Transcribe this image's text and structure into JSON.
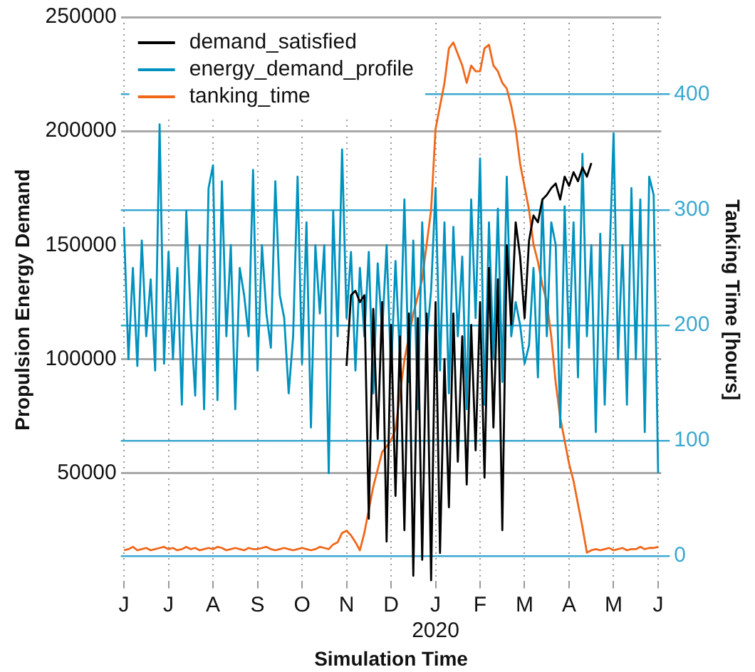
{
  "chart_data": {
    "type": "line",
    "xlabel": "Simulation Time",
    "ylabel": "Propulsion Energy Demand",
    "y2label": "Tanking Time [hours]",
    "categories": [
      "J",
      null,
      null,
      null,
      null,
      null,
      null,
      null,
      null,
      null,
      "J",
      null,
      null,
      null,
      null,
      null,
      null,
      null,
      null,
      null,
      "A",
      null,
      null,
      null,
      null,
      null,
      null,
      null,
      null,
      null,
      "S",
      null,
      null,
      null,
      null,
      null,
      null,
      null,
      null,
      null,
      "O",
      null,
      null,
      null,
      null,
      null,
      null,
      null,
      null,
      null,
      "N",
      null,
      null,
      null,
      null,
      null,
      null,
      null,
      null,
      null,
      "D",
      null,
      null,
      null,
      null,
      null,
      null,
      null,
      null,
      null,
      "J\n2020",
      null,
      null,
      null,
      null,
      null,
      null,
      null,
      null,
      null,
      "F",
      null,
      null,
      null,
      null,
      null,
      null,
      null,
      null,
      null,
      "M",
      null,
      null,
      null,
      null,
      null,
      null,
      null,
      null,
      null,
      "A",
      null,
      null,
      null,
      null,
      null,
      null,
      null,
      null,
      null,
      "M",
      null,
      null,
      null,
      null,
      null,
      null,
      null,
      null,
      null,
      "J"
    ],
    "ylim": [
      2000,
      250000
    ],
    "yticks": [
      50000,
      100000,
      150000,
      200000,
      250000
    ],
    "y2lim": [
      -23,
      467
    ],
    "y2ticks": [
      0,
      100,
      200,
      300,
      400
    ],
    "grid": true,
    "legend": "top left",
    "series": [
      {
        "name": "demand_satisfied",
        "color": "#000000",
        "values": [
          null,
          null,
          null,
          null,
          null,
          null,
          null,
          null,
          null,
          null,
          null,
          null,
          null,
          null,
          null,
          null,
          null,
          null,
          null,
          null,
          null,
          null,
          null,
          null,
          null,
          null,
          null,
          null,
          null,
          null,
          null,
          null,
          null,
          null,
          null,
          null,
          null,
          null,
          null,
          null,
          null,
          null,
          null,
          null,
          null,
          null,
          null,
          null,
          null,
          null,
          97000,
          128000,
          130000,
          125000,
          128000,
          30000,
          122000,
          65000,
          125000,
          20000,
          115000,
          40000,
          110000,
          25000,
          120000,
          5000,
          118000,
          12000,
          120000,
          3000,
          125000,
          15000,
          100000,
          35000,
          120000,
          55000,
          110000,
          45000,
          115000,
          60000,
          125000,
          48000,
          140000,
          70000,
          135000,
          25000,
          150000,
          115000,
          160000,
          145000,
          118000,
          152000,
          163000,
          160000,
          170000,
          172000,
          175000,
          177000,
          170000,
          180000,
          176000,
          182000,
          178000,
          184000,
          180000,
          186000,
          null,
          null,
          null,
          null,
          null,
          null,
          null,
          null,
          null,
          null,
          null,
          null,
          null,
          null,
          null
        ]
      },
      {
        "name": "energy_demand_profile",
        "color": "#0092bf",
        "values": [
          158000,
          100000,
          140000,
          97000,
          152000,
          110000,
          135000,
          95000,
          203000,
          98000,
          147000,
          100000,
          140000,
          80000,
          165000,
          118000,
          84000,
          150000,
          78000,
          175000,
          185000,
          82000,
          178000,
          110000,
          150000,
          78000,
          140000,
          128000,
          110000,
          183000,
          95000,
          150000,
          120000,
          105000,
          178000,
          128000,
          118000,
          85000,
          110000,
          180000,
          98000,
          160000,
          70000,
          150000,
          120000,
          150000,
          50000,
          165000,
          110000,
          192000,
          118000,
          147000,
          95000,
          140000,
          110000,
          147000,
          85000,
          142000,
          112000,
          150000,
          94000,
          143000,
          100000,
          170000,
          90000,
          152000,
          78000,
          160000,
          108000,
          130000,
          175000,
          95000,
          160000,
          85000,
          158000,
          110000,
          145000,
          78000,
          170000,
          118000,
          188000,
          80000,
          160000,
          100000,
          166000,
          90000,
          180000,
          110000,
          125000,
          115000,
          98000,
          106000,
          140000,
          92000,
          170000,
          110000,
          160000,
          150000,
          70000,
          167000,
          105000,
          160000,
          92000,
          190000,
          110000,
          150000,
          68000,
          155000,
          80000,
          140000,
          199000,
          100000,
          150000,
          80000,
          175000,
          100000,
          170000,
          68000,
          180000,
          172000,
          50000
        ]
      },
      {
        "name": "tanking_time",
        "color": "#f0671a",
        "axis": "y2",
        "values": [
          5,
          6,
          8,
          5,
          6,
          7,
          5,
          6,
          7,
          8,
          6,
          7,
          5,
          6,
          8,
          6,
          7,
          5,
          6,
          7,
          6,
          8,
          7,
          5,
          6,
          7,
          6,
          5,
          7,
          6,
          6,
          7,
          8,
          6,
          5,
          6,
          7,
          6,
          5,
          6,
          7,
          6,
          5,
          6,
          8,
          7,
          6,
          10,
          12,
          20,
          22,
          18,
          12,
          5,
          20,
          40,
          60,
          75,
          90,
          95,
          100,
          110,
          140,
          170,
          190,
          210,
          225,
          240,
          270,
          300,
          370,
          390,
          410,
          440,
          445,
          435,
          425,
          410,
          425,
          420,
          420,
          440,
          443,
          425,
          420,
          410,
          405,
          390,
          370,
          340,
          320,
          300,
          270,
          255,
          235,
          220,
          190,
          150,
          120,
          100,
          80,
          65,
          45,
          25,
          3,
          5,
          6,
          5,
          6,
          7,
          5,
          6,
          7,
          5,
          6,
          6,
          8,
          6,
          7,
          7,
          8
        ]
      }
    ]
  }
}
